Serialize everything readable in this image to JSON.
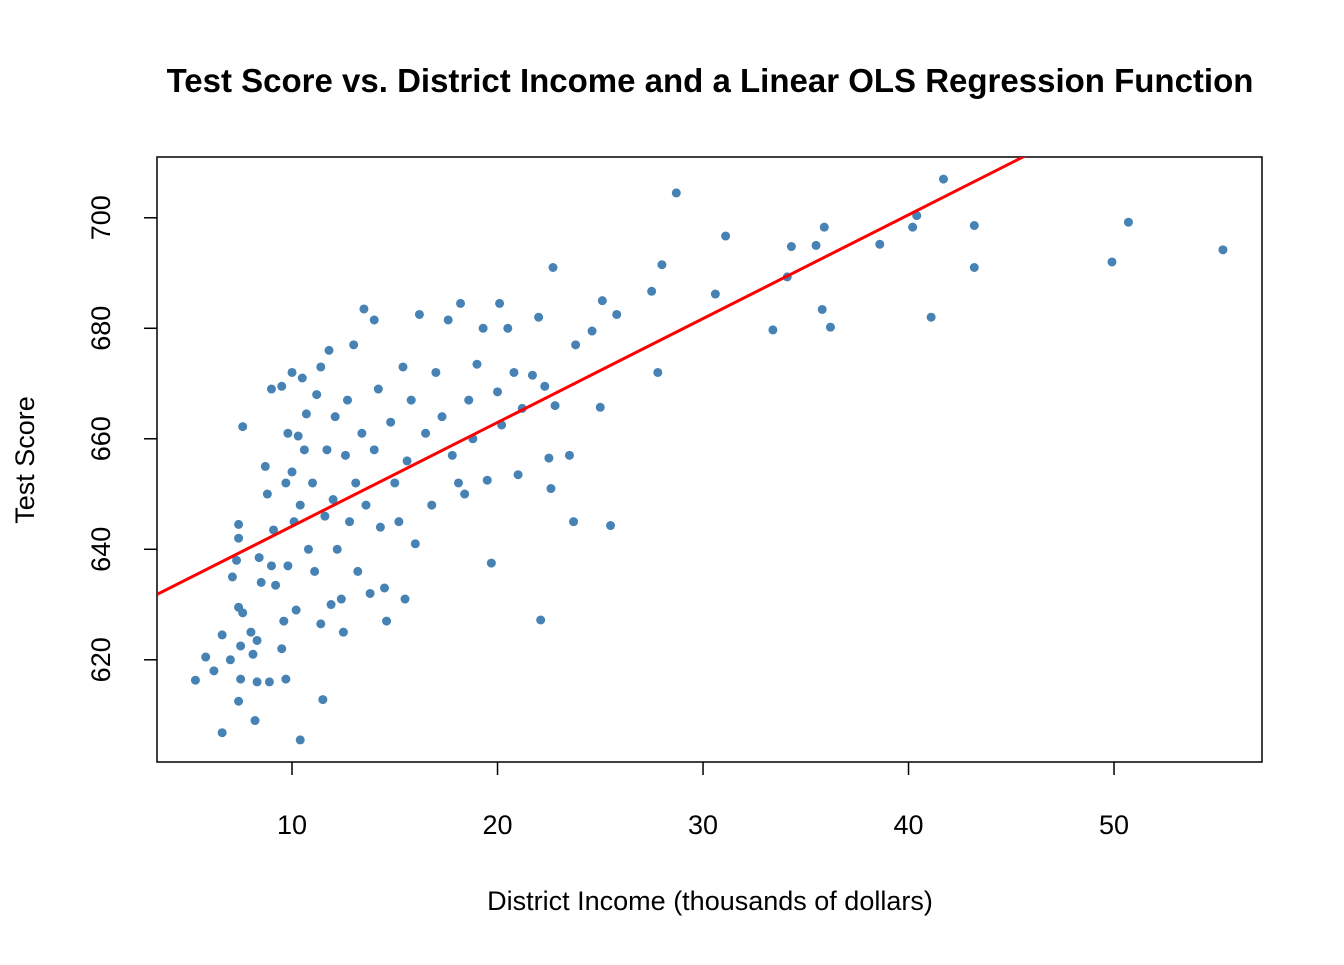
{
  "chart_data": {
    "type": "scatter",
    "title": "Test Score vs. District Income and a Linear OLS Regression Function",
    "xlabel": "District Income (thousands of dollars)",
    "ylabel": "Test Score",
    "color": "#4682b4",
    "x": [
      5.3,
      5.8,
      6.2,
      6.6,
      6.6,
      7.0,
      7.1,
      7.3,
      7.4,
      7.4,
      7.4,
      7.4,
      7.5,
      7.6,
      7.5,
      7.6,
      8.0,
      8.1,
      8.2,
      8.3,
      8.3,
      8.4,
      8.5,
      8.7,
      8.8,
      8.9,
      9.0,
      9.0,
      9.1,
      9.2,
      9.5,
      9.5,
      9.6,
      9.7,
      9.7,
      9.8,
      9.8,
      10.0,
      10.0,
      10.1,
      10.2,
      10.3,
      10.4,
      10.4,
      10.5,
      10.6,
      10.7,
      10.8,
      11.0,
      11.1,
      11.2,
      11.4,
      11.4,
      11.5,
      11.6,
      11.7,
      11.8,
      11.9,
      12.0,
      12.1,
      12.2,
      12.4,
      12.5,
      12.6,
      12.7,
      12.8,
      13.0,
      13.1,
      13.2,
      13.4,
      13.5,
      13.6,
      13.8,
      14.0,
      14.0,
      14.2,
      14.3,
      14.5,
      14.6,
      14.8,
      15.0,
      15.2,
      15.4,
      15.5,
      15.6,
      15.8,
      16.0,
      16.2,
      16.5,
      16.8,
      17.0,
      17.3,
      17.6,
      17.8,
      18.1,
      18.2,
      18.4,
      18.6,
      18.8,
      19.0,
      19.3,
      19.5,
      19.7,
      20.0,
      20.1,
      20.2,
      20.5,
      20.8,
      21.0,
      21.2,
      21.7,
      22.0,
      22.1,
      22.3,
      22.5,
      22.6,
      22.7,
      22.8,
      23.5,
      23.7,
      23.8,
      24.6,
      25.0,
      25.1,
      25.5,
      25.8,
      27.5,
      27.8,
      28.0,
      28.7,
      30.6,
      31.1,
      33.4,
      34.3,
      34.1,
      35.5,
      35.8,
      35.9,
      36.2,
      38.6,
      40.2,
      40.4,
      41.1,
      41.7,
      43.2,
      43.2,
      49.9,
      50.7,
      55.3
    ],
    "values": [
      616.3,
      620.5,
      618,
      606.8,
      624.5,
      620,
      635,
      638,
      644.5,
      642,
      629.5,
      612.5,
      616.5,
      662.2,
      622.5,
      628.5,
      625,
      621,
      609,
      616,
      623.5,
      638.5,
      634,
      655,
      650,
      616,
      669,
      637,
      643.5,
      633.5,
      669.5,
      622,
      627,
      616.5,
      652,
      661,
      637,
      672,
      654,
      645,
      629,
      660.5,
      648,
      605.5,
      671,
      658,
      664.5,
      640,
      652,
      636,
      668,
      673,
      626.5,
      612.8,
      646,
      658,
      676,
      630,
      649,
      664,
      640,
      631,
      625,
      657,
      667,
      645,
      677,
      652,
      636,
      661,
      683.5,
      648,
      632,
      658,
      681.5,
      669,
      644,
      633,
      627,
      663,
      652,
      645,
      673,
      631,
      656,
      667,
      641,
      682.5,
      661,
      648,
      672,
      664,
      681.5,
      657,
      652,
      684.5,
      650,
      667,
      660,
      673.5,
      680,
      652.5,
      637.5,
      668.5,
      684.5,
      662.5,
      680,
      672,
      653.5,
      665.5,
      671.5,
      682,
      627.2,
      669.5,
      656.5,
      651,
      691,
      666,
      657,
      645,
      677,
      679.5,
      665.7,
      685,
      644.3,
      682.5,
      686.7,
      672,
      691.5,
      704.5,
      686.2,
      696.7,
      679.7,
      694.8,
      689.3,
      695,
      683.4,
      698.3,
      680.2,
      695.2,
      698.3,
      700.4,
      682,
      707,
      698.6,
      691,
      692,
      699.2,
      694.2
    ],
    "regression": {
      "intercept": 625.38,
      "slope": 1.879,
      "color": "#ff0000"
    },
    "xlim": [
      3.43,
      57.2
    ],
    "xticks": [
      10,
      20,
      30,
      40,
      50
    ],
    "ylim": [
      601.5,
      711.0
    ],
    "yticks": [
      620,
      640,
      660,
      680,
      700
    ]
  }
}
